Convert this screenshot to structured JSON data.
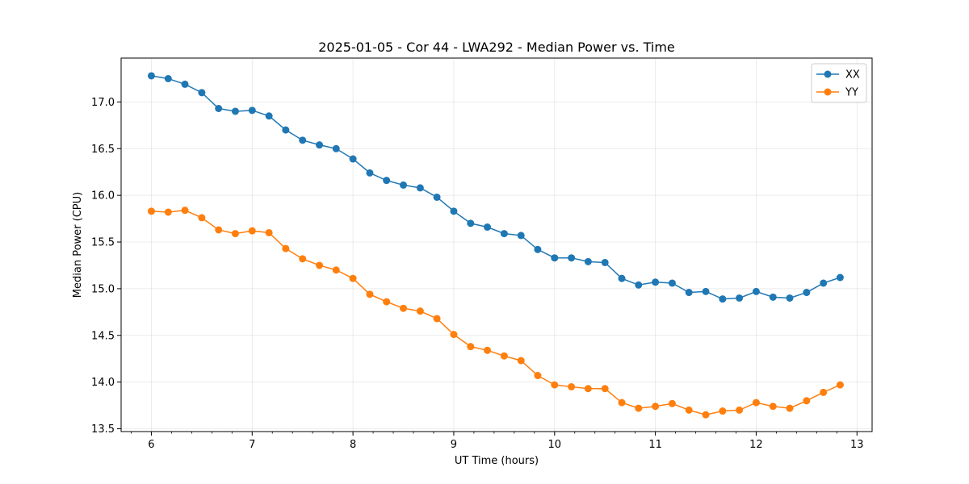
{
  "chart_data": {
    "type": "line",
    "title": "2025-01-05 - Cor 44 - LWA292 - Median Power vs. Time",
    "xlabel": "UT Time (hours)",
    "ylabel": "Median Power (CPU)",
    "xlim": [
      5.7,
      13.15
    ],
    "ylim": [
      13.47,
      17.47
    ],
    "xticks": [
      6,
      7,
      8,
      9,
      10,
      11,
      12,
      13
    ],
    "xtick_labels": [
      "6",
      "7",
      "8",
      "9",
      "10",
      "11",
      "12",
      "13"
    ],
    "yticks": [
      13.5,
      14.0,
      14.5,
      15.0,
      15.5,
      16.0,
      16.5,
      17.0
    ],
    "ytick_labels": [
      "13.5",
      "14.0",
      "14.5",
      "15.0",
      "15.5",
      "16.0",
      "16.5",
      "17.0"
    ],
    "grid": true,
    "legend_position": "top-right",
    "x": [
      6.0,
      6.167,
      6.333,
      6.5,
      6.667,
      6.833,
      7.0,
      7.167,
      7.333,
      7.5,
      7.667,
      7.833,
      8.0,
      8.167,
      8.333,
      8.5,
      8.667,
      8.833,
      9.0,
      9.167,
      9.333,
      9.5,
      9.667,
      9.833,
      10.0,
      10.167,
      10.333,
      10.5,
      10.667,
      10.833,
      11.0,
      11.167,
      11.333,
      11.5,
      11.667,
      11.833,
      12.0,
      12.167,
      12.333,
      12.5,
      12.667,
      12.833
    ],
    "series": [
      {
        "name": "XX",
        "color": "#1f77b4",
        "values": [
          17.28,
          17.25,
          17.19,
          17.1,
          16.93,
          16.9,
          16.91,
          16.85,
          16.7,
          16.59,
          16.54,
          16.5,
          16.39,
          16.24,
          16.16,
          16.11,
          16.08,
          15.98,
          15.83,
          15.7,
          15.66,
          15.59,
          15.57,
          15.42,
          15.33,
          15.33,
          15.29,
          15.28,
          15.11,
          15.04,
          15.07,
          15.06,
          14.96,
          14.97,
          14.89,
          14.9,
          14.97,
          14.91,
          14.9,
          14.96,
          15.06,
          15.12
        ]
      },
      {
        "name": "YY",
        "color": "#ff7f0e",
        "values": [
          15.83,
          15.82,
          15.84,
          15.76,
          15.63,
          15.59,
          15.62,
          15.6,
          15.43,
          15.32,
          15.25,
          15.2,
          15.11,
          14.94,
          14.86,
          14.79,
          14.76,
          14.68,
          14.51,
          14.38,
          14.34,
          14.28,
          14.23,
          14.07,
          13.97,
          13.95,
          13.93,
          13.93,
          13.78,
          13.72,
          13.74,
          13.77,
          13.7,
          13.65,
          13.69,
          13.7,
          13.78,
          13.74,
          13.72,
          13.8,
          13.89,
          13.97
        ]
      }
    ]
  }
}
